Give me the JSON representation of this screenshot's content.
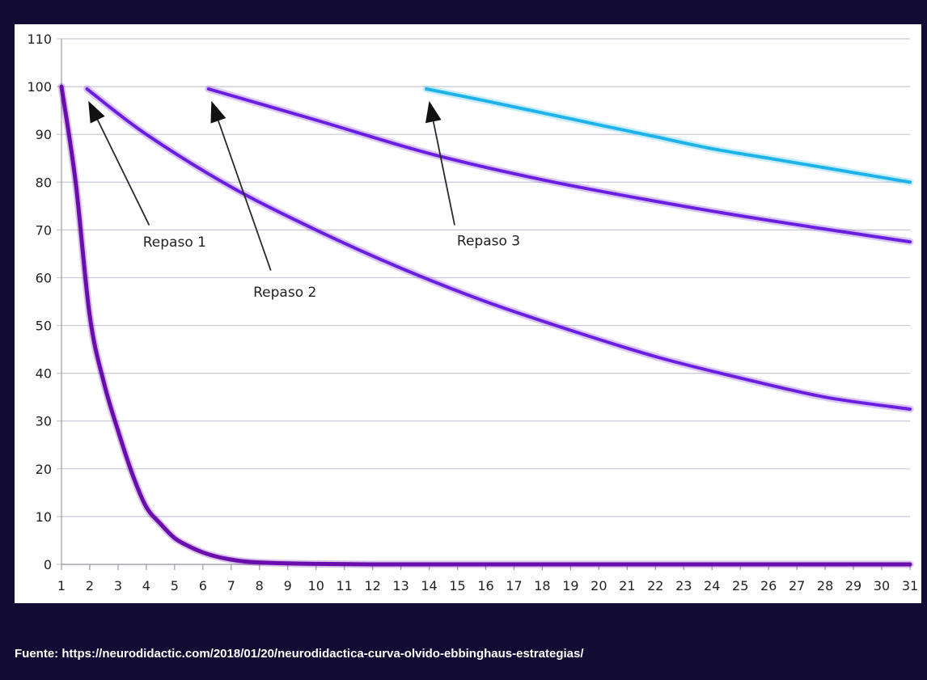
{
  "source": "Fuente: https://neurodidactic.com/2018/01/20/neurodidactica-curva-olvido-ebbinghaus-estrategias/",
  "colors": {
    "background": "#120b33",
    "panel": "#ffffff",
    "grid": "#c9c9d6",
    "forgetting_curve": "#6a0dad",
    "review_curve": "#6a1fe0",
    "review3_curve": "#1fb2ea"
  },
  "chart_data": {
    "type": "line",
    "title": "",
    "xlabel": "",
    "ylabel": "",
    "xlim": [
      1,
      31
    ],
    "ylim": [
      0,
      110
    ],
    "x_ticks": [
      "1",
      "2",
      "3",
      "4",
      "5",
      "6",
      "7",
      "8",
      "9",
      "10",
      "11",
      "12",
      "13",
      "14",
      "15",
      "16",
      "17",
      "18",
      "19",
      "20",
      "21",
      "22",
      "23",
      "24",
      "25",
      "26",
      "27",
      "28",
      "29",
      "30",
      "31"
    ],
    "y_ticks": [
      "0",
      "10",
      "20",
      "30",
      "40",
      "50",
      "60",
      "70",
      "80",
      "90",
      "100",
      "110"
    ],
    "grid": true,
    "legend": "none",
    "series": [
      {
        "color": "#6a0dad",
        "x": [
          1,
          1.5,
          2,
          2.5,
          3,
          3.5,
          4,
          4.5,
          5,
          5.5,
          6,
          6.5,
          7,
          7.5,
          8,
          9,
          10,
          12,
          15,
          20,
          25,
          31
        ],
        "y": [
          100,
          80,
          52,
          38,
          28,
          19,
          12,
          8.5,
          5.5,
          3.8,
          2.5,
          1.6,
          1.0,
          0.6,
          0.4,
          0.2,
          0.1,
          0,
          0,
          0,
          0,
          0
        ]
      },
      {
        "color": "#6a1fe0",
        "x": [
          1.9,
          4,
          7,
          10,
          13,
          16,
          19,
          22,
          25,
          28,
          31
        ],
        "y": [
          99.5,
          90,
          79,
          70,
          62,
          55,
          49,
          43.5,
          39,
          35,
          32.5
        ]
      },
      {
        "color": "#6a1fe0",
        "x": [
          6.2,
          10,
          14,
          18,
          22,
          26,
          31
        ],
        "y": [
          99.5,
          93,
          86,
          80.5,
          76,
          72,
          67.5
        ]
      },
      {
        "color": "#1fb2ea",
        "x": [
          13.9,
          16,
          18,
          20,
          22,
          24,
          26,
          28,
          31
        ],
        "y": [
          99.5,
          97,
          94.5,
          92,
          89.5,
          87,
          85,
          83,
          80
        ]
      }
    ],
    "annotations": [
      {
        "text": "Repaso 1",
        "label_x": 5,
        "label_y": 66.5,
        "tail_x": 4.1,
        "tail_y": 71,
        "head_x": 1.95,
        "head_y": 97
      },
      {
        "text": "Repaso 2",
        "label_x": 8.9,
        "label_y": 56,
        "tail_x": 8.4,
        "tail_y": 61.5,
        "head_x": 6.3,
        "head_y": 97
      },
      {
        "text": "Repaso 3",
        "label_x": 16.1,
        "label_y": 66.8,
        "tail_x": 14.9,
        "tail_y": 71,
        "head_x": 14.0,
        "head_y": 97
      }
    ]
  }
}
